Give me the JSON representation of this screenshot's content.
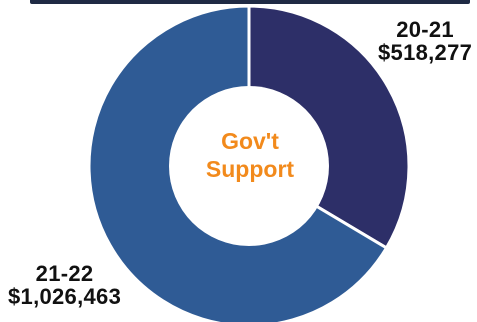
{
  "chart_data": {
    "type": "pie",
    "title": "",
    "center_label": [
      "Gov't",
      "Support"
    ],
    "categories": [
      "20-21",
      "21-22"
    ],
    "values": [
      518277,
      1026463
    ],
    "value_labels": [
      "$518,277",
      "$1,026,463"
    ],
    "colors": [
      "#2d2f68",
      "#2f5b95"
    ],
    "center_label_color": "#f28a1c"
  }
}
